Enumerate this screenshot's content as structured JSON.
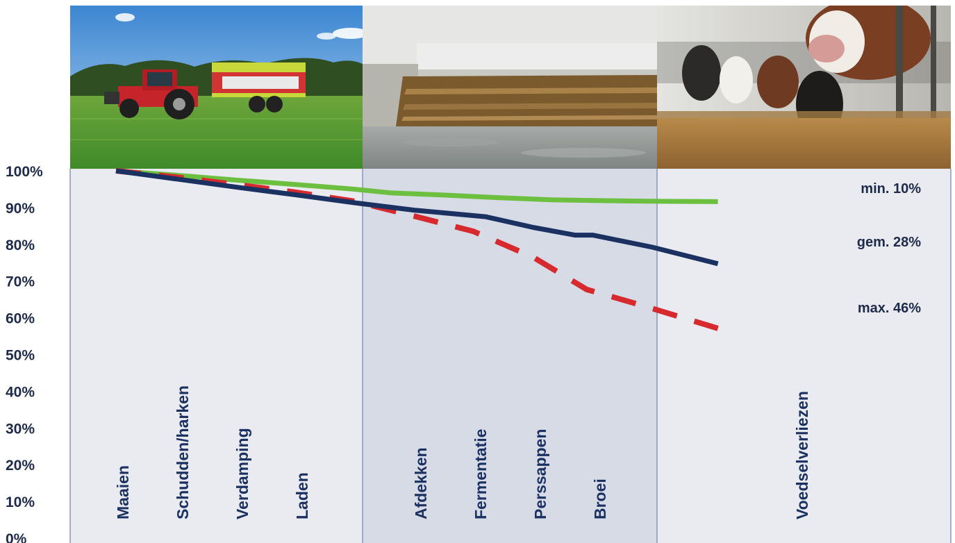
{
  "chart_data": {
    "type": "line",
    "phases": [
      {
        "name": "field",
        "color": "#e9ebf0",
        "photo": "tractor-with-forage-wagon"
      },
      {
        "name": "silo",
        "color": "#d7dbe6",
        "photo": "covered-silage-clamp"
      },
      {
        "name": "barn",
        "color": "#e9ebf0",
        "photo": "cows-at-feed-fence"
      }
    ],
    "yticks": [
      "100%",
      "90%",
      "80%",
      "70%",
      "60%",
      "50%",
      "40%",
      "30%",
      "20%",
      "10%",
      "0%"
    ],
    "ylim": [
      0,
      100
    ],
    "grid": false,
    "steps": [
      "Maaien",
      "Schudden/harken",
      "Verdamping",
      "Laden",
      "Afdekken",
      "Fermentatie",
      "Perssappen",
      "Broei",
      "Voedselverliezen"
    ],
    "series": [
      {
        "name": "min. 10%",
        "color": "#6cbf3f",
        "style": "solid",
        "points": [
          [
            0,
            100
          ],
          [
            1,
            98.8
          ],
          [
            2,
            97.5
          ],
          [
            3,
            96.3
          ],
          [
            4,
            95
          ],
          [
            4.6,
            94
          ],
          [
            5.5,
            93.4
          ],
          [
            6.4,
            92.7
          ],
          [
            7.3,
            92.1
          ],
          [
            8,
            91.9
          ],
          [
            9.1,
            91.7
          ],
          [
            10.1,
            91.6
          ]
        ]
      },
      {
        "name": "gem. 28%",
        "color": "#1b3161",
        "style": "solid",
        "points": [
          [
            0,
            100
          ],
          [
            1,
            97.8
          ],
          [
            2,
            95.6
          ],
          [
            3,
            93.5
          ],
          [
            4,
            91.3
          ],
          [
            5,
            89.3
          ],
          [
            6.2,
            87.5
          ],
          [
            7,
            84.6
          ],
          [
            7.7,
            82.5
          ],
          [
            8,
            82.5
          ],
          [
            9,
            79.2
          ],
          [
            10.1,
            74.7
          ]
        ]
      },
      {
        "name": "max. 46%",
        "color": "#d62a2f",
        "style": "dashed",
        "points": [
          [
            0,
            100
          ],
          [
            1,
            98.3
          ],
          [
            2,
            96.3
          ],
          [
            3,
            94.2
          ],
          [
            4,
            91.7
          ],
          [
            5,
            87.7
          ],
          [
            6,
            83.5
          ],
          [
            7,
            76.5
          ],
          [
            7.9,
            67.7
          ],
          [
            8.8,
            63.5
          ],
          [
            10.1,
            57.1
          ]
        ]
      }
    ]
  }
}
